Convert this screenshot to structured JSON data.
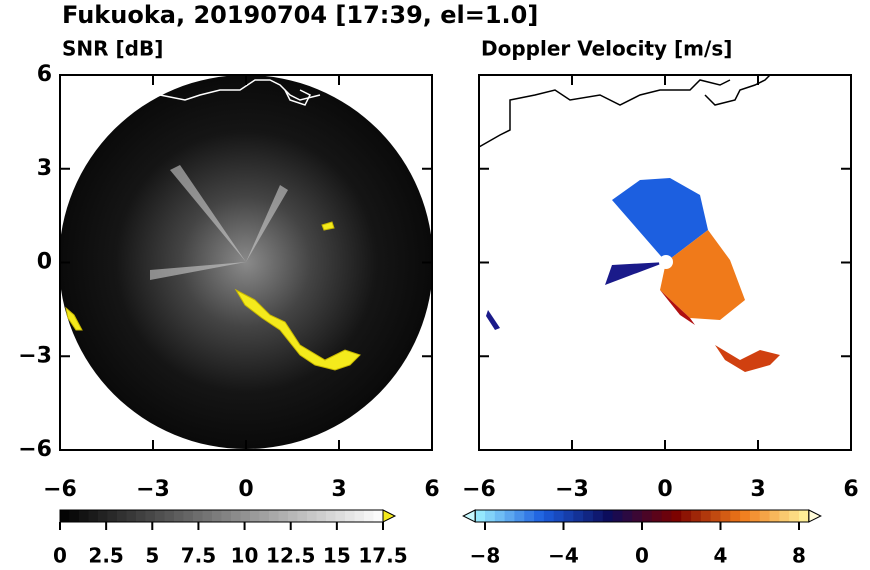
{
  "figure_title": "Fukuoka, 20190704 [17:39, el=1.0]",
  "chart_data": [
    {
      "type": "image",
      "title": "SNR [dB]",
      "xlim": [
        -6,
        6
      ],
      "ylim": [
        -6,
        6
      ],
      "xticks": [
        {
          "value": -6,
          "label": "−6"
        },
        {
          "value": -3,
          "label": "−3"
        },
        0,
        3,
        6
      ],
      "yticks": [
        {
          "value": -6,
          "label": "−6"
        },
        {
          "value": -3,
          "label": "−3"
        },
        0,
        3,
        6
      ],
      "colorbar": {
        "lim": [
          0,
          17.5
        ],
        "ticks": [
          0,
          2.5,
          5,
          7.5,
          10,
          12.5,
          15,
          17.5
        ],
        "extend": "max",
        "colors": [
          "#000000",
          "#ffffff"
        ],
        "over": "#f4ea1c"
      }
    },
    {
      "type": "image",
      "title": "Doppler Velocity [m/s]",
      "xlim": [
        -6,
        6
      ],
      "ylim": [
        -6,
        6
      ],
      "xticks": [
        {
          "value": -6,
          "label": "−6"
        },
        {
          "value": -3,
          "label": "−3"
        },
        0,
        3,
        6
      ],
      "colorbar": {
        "lim": [
          -8.5,
          8.5
        ],
        "ticks": [
          {
            "value": -8,
            "label": "−8"
          },
          {
            "value": -4,
            "label": "−4"
          },
          0,
          4,
          8
        ],
        "extend": "both",
        "colors": [
          "#9ff3ff",
          "#1c5fe0",
          "#0c0c5a",
          "#7a0000",
          "#f07a1a",
          "#fff7a0"
        ],
        "under": "#c8faff",
        "over": "#fffbd8"
      }
    }
  ]
}
